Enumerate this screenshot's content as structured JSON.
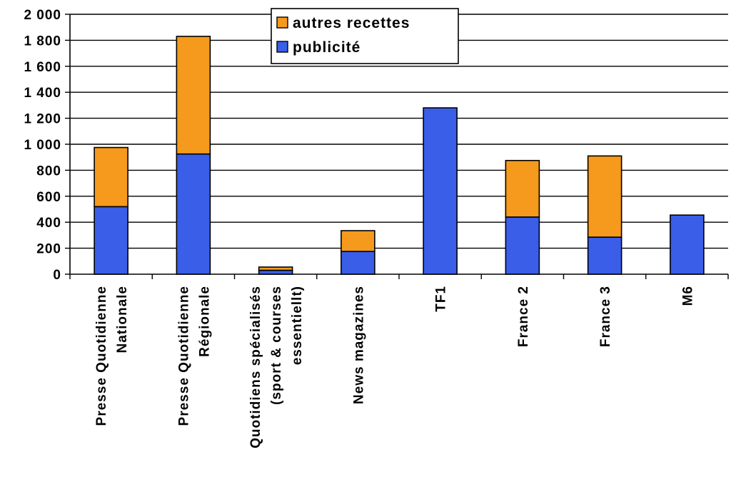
{
  "chart_data": {
    "type": "bar",
    "stacked": true,
    "title": "",
    "xlabel": "",
    "ylabel": "",
    "ylim": [
      0,
      2000
    ],
    "yticks": [
      0,
      200,
      400,
      600,
      800,
      1000,
      1200,
      1400,
      1600,
      1800,
      2000
    ],
    "ytick_labels": [
      "0",
      "200",
      "400",
      "600",
      "800",
      "1 000",
      "1 200",
      "1 400",
      "1 600",
      "1 800",
      "2 000"
    ],
    "grid": true,
    "legend_position": "top-center",
    "categories": [
      [
        "Presse Quotidienne",
        "Nationale"
      ],
      [
        "Presse Quotidienne",
        "Régionale"
      ],
      [
        "Quotidiens spécialisés",
        "(sport & courses",
        "essentiellt)"
      ],
      [
        "News magazines"
      ],
      [
        "TF1"
      ],
      [
        "France 2"
      ],
      [
        "France 3"
      ],
      [
        "M6"
      ]
    ],
    "series": [
      {
        "name": "publicité",
        "color": "#3a5ee8",
        "values": [
          520,
          925,
          30,
          175,
          1280,
          440,
          285,
          455
        ]
      },
      {
        "name": "autres recettes",
        "color": "#f59a1c",
        "values": [
          455,
          905,
          25,
          160,
          0,
          435,
          625,
          0
        ]
      }
    ],
    "legend_order": [
      "autres recettes",
      "publicité"
    ]
  }
}
